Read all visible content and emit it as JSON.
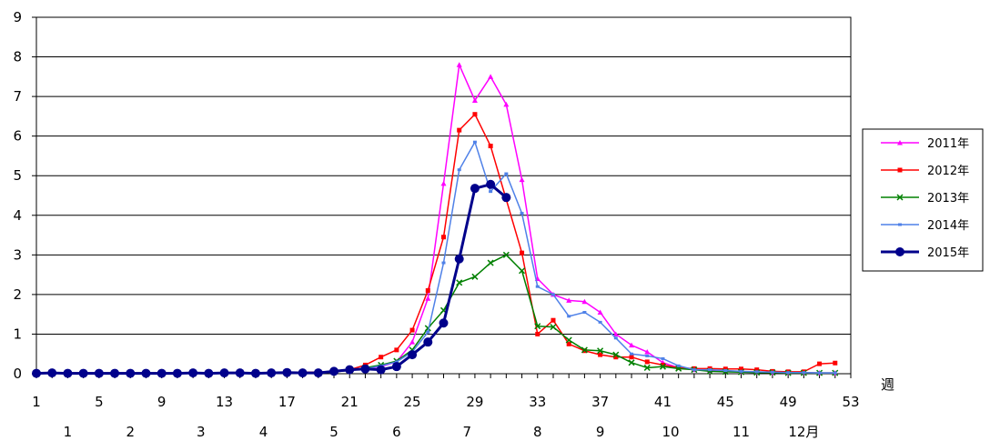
{
  "chart_data": {
    "type": "line",
    "title": "",
    "xlabel": "週",
    "ylabel": "",
    "xlim": [
      1,
      53
    ],
    "ylim": [
      0,
      9
    ],
    "y_ticks": [
      0,
      1,
      2,
      3,
      4,
      5,
      6,
      7,
      8,
      9
    ],
    "x_ticks": [
      1,
      5,
      9,
      13,
      17,
      21,
      25,
      29,
      33,
      37,
      41,
      45,
      49,
      53
    ],
    "months": [
      {
        "label": "1",
        "week": 3
      },
      {
        "label": "2",
        "week": 7
      },
      {
        "label": "3",
        "week": 11.5
      },
      {
        "label": "4",
        "week": 15.5
      },
      {
        "label": "5",
        "week": 20
      },
      {
        "label": "6",
        "week": 24
      },
      {
        "label": "7",
        "week": 28.5
      },
      {
        "label": "8",
        "week": 33
      },
      {
        "label": "9",
        "week": 37
      },
      {
        "label": "10",
        "week": 41.5
      },
      {
        "label": "11",
        "week": 46
      },
      {
        "label": "12月",
        "week": 50
      }
    ],
    "grid": true,
    "legend_position": "right",
    "series": [
      {
        "name": "2011年",
        "color": "#ff00ff",
        "marker": "triangle",
        "x": [
          1,
          2,
          3,
          4,
          5,
          6,
          7,
          8,
          9,
          10,
          11,
          12,
          13,
          14,
          15,
          16,
          17,
          18,
          19,
          20,
          21,
          22,
          23,
          24,
          25,
          26,
          27,
          28,
          29,
          30,
          31,
          32,
          33,
          34,
          35,
          36,
          37,
          38,
          39,
          40,
          41,
          42,
          43,
          44,
          45,
          46,
          47,
          48,
          49,
          50,
          51,
          52
        ],
        "values": [
          0.02,
          0.02,
          0.02,
          0.02,
          0.02,
          0.02,
          0.02,
          0.02,
          0.02,
          0.02,
          0.03,
          0.02,
          0.03,
          0.03,
          0.03,
          0.03,
          0.03,
          0.03,
          0.03,
          0.05,
          0.08,
          0.12,
          0.18,
          0.3,
          0.8,
          1.9,
          4.8,
          7.8,
          6.9,
          7.5,
          6.8,
          4.9,
          2.4,
          2.0,
          1.85,
          1.82,
          1.55,
          1.0,
          0.72,
          0.55,
          0.28,
          0.15,
          0.1,
          0.08,
          0.07,
          0.05,
          0.04,
          0.03,
          0.03,
          0.03,
          0.02,
          0.02
        ]
      },
      {
        "name": "2012年",
        "color": "#ff0000",
        "marker": "square",
        "x": [
          1,
          2,
          3,
          4,
          5,
          6,
          7,
          8,
          9,
          10,
          11,
          12,
          13,
          14,
          15,
          16,
          17,
          18,
          19,
          20,
          21,
          22,
          23,
          24,
          25,
          26,
          27,
          28,
          29,
          30,
          31,
          32,
          33,
          34,
          35,
          36,
          37,
          38,
          39,
          40,
          41,
          42,
          43,
          44,
          45,
          46,
          47,
          48,
          49,
          50,
          51,
          52
        ],
        "values": [
          0.02,
          0.02,
          0.02,
          0.02,
          0.02,
          0.02,
          0.02,
          0.02,
          0.02,
          0.02,
          0.02,
          0.02,
          0.02,
          0.03,
          0.03,
          0.03,
          0.04,
          0.04,
          0.04,
          0.06,
          0.1,
          0.22,
          0.42,
          0.6,
          1.1,
          2.1,
          3.45,
          6.15,
          6.55,
          5.75,
          4.4,
          3.05,
          1.0,
          1.35,
          0.75,
          0.58,
          0.48,
          0.42,
          0.42,
          0.3,
          0.22,
          0.15,
          0.13,
          0.13,
          0.12,
          0.12,
          0.1,
          0.06,
          0.05,
          0.05,
          0.25,
          0.27
        ]
      },
      {
        "name": "2013年",
        "color": "#008000",
        "marker": "x",
        "x": [
          1,
          2,
          3,
          4,
          5,
          6,
          7,
          8,
          9,
          10,
          11,
          12,
          13,
          14,
          15,
          16,
          17,
          18,
          19,
          20,
          21,
          22,
          23,
          24,
          25,
          26,
          27,
          28,
          29,
          30,
          31,
          32,
          33,
          34,
          35,
          36,
          37,
          38,
          39,
          40,
          41,
          42,
          43,
          44,
          45,
          46,
          47,
          48,
          49,
          50,
          51,
          52
        ],
        "values": [
          0.02,
          0.02,
          0.02,
          0.02,
          0.02,
          0.02,
          0.02,
          0.02,
          0.02,
          0.02,
          0.02,
          0.02,
          0.02,
          0.02,
          0.02,
          0.02,
          0.02,
          0.02,
          0.03,
          0.05,
          0.08,
          0.15,
          0.22,
          0.32,
          0.6,
          1.15,
          1.6,
          2.3,
          2.45,
          2.8,
          3.0,
          2.6,
          1.2,
          1.18,
          0.85,
          0.6,
          0.58,
          0.48,
          0.28,
          0.15,
          0.18,
          0.13,
          0.1,
          0.06,
          0.05,
          0.04,
          0.03,
          0.03,
          0.02,
          0.02,
          0.02,
          0.02
        ]
      },
      {
        "name": "2014年",
        "color": "#4f81e8",
        "marker": "dash",
        "x": [
          1,
          2,
          3,
          4,
          5,
          6,
          7,
          8,
          9,
          10,
          11,
          12,
          13,
          14,
          15,
          16,
          17,
          18,
          19,
          20,
          21,
          22,
          23,
          24,
          25,
          26,
          27,
          28,
          29,
          30,
          31,
          32,
          33,
          34,
          35,
          36,
          37,
          38,
          39,
          40,
          41,
          42,
          43,
          44,
          45,
          46,
          47,
          48,
          49,
          50,
          51,
          52
        ],
        "values": [
          0.02,
          0.02,
          0.02,
          0.02,
          0.02,
          0.02,
          0.02,
          0.02,
          0.02,
          0.02,
          0.02,
          0.02,
          0.02,
          0.02,
          0.02,
          0.02,
          0.02,
          0.02,
          0.03,
          0.05,
          0.08,
          0.12,
          0.2,
          0.3,
          0.55,
          1.05,
          2.8,
          5.15,
          5.85,
          4.6,
          5.05,
          4.05,
          2.2,
          2.0,
          1.45,
          1.55,
          1.3,
          0.9,
          0.5,
          0.45,
          0.38,
          0.2,
          0.1,
          0.1,
          0.08,
          0.06,
          0.05,
          0.04,
          0.03,
          0.03,
          0.02,
          0.02
        ]
      },
      {
        "name": "2015年",
        "color": "#00008b",
        "marker": "circle",
        "x": [
          1,
          2,
          3,
          4,
          5,
          6,
          7,
          8,
          9,
          10,
          11,
          12,
          13,
          14,
          15,
          16,
          17,
          18,
          19,
          20,
          21,
          22,
          23,
          24,
          25,
          26,
          27,
          28,
          29,
          30,
          31
        ],
        "values": [
          0.01,
          0.02,
          0.01,
          0.01,
          0.01,
          0.01,
          0.01,
          0.01,
          0.01,
          0.01,
          0.02,
          0.01,
          0.02,
          0.02,
          0.01,
          0.02,
          0.03,
          0.02,
          0.02,
          0.06,
          0.1,
          0.12,
          0.1,
          0.18,
          0.48,
          0.8,
          1.28,
          2.9,
          4.68,
          4.78,
          4.45
        ]
      }
    ]
  }
}
